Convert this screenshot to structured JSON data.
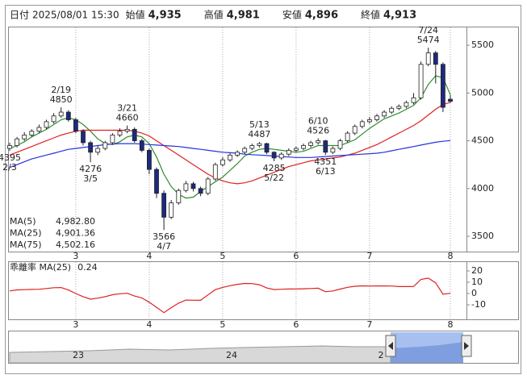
{
  "header": [
    {
      "label": "日付",
      "value": "2025/08/01 15:30",
      "color": "#222"
    },
    {
      "label": "始値",
      "value": "4,935",
      "color": "#222"
    },
    {
      "label": "高値",
      "value": "4,981",
      "color": "#e00000"
    },
    {
      "label": "安値",
      "value": "4,896",
      "color": "#1a8a1a"
    },
    {
      "label": "終値",
      "value": "4,913",
      "color": "#222"
    }
  ],
  "chart_data": [
    {
      "type": "candlestick",
      "categories": [
        null,
        null,
        null,
        null,
        null,
        null,
        null,
        null,
        null,
        "3",
        null,
        null,
        null,
        null,
        null,
        null,
        null,
        null,
        null,
        "4",
        null,
        null,
        null,
        null,
        null,
        null,
        null,
        null,
        null,
        "5",
        null,
        null,
        null,
        null,
        null,
        null,
        null,
        null,
        null,
        "6",
        null,
        null,
        null,
        null,
        null,
        null,
        null,
        null,
        null,
        "7",
        null,
        null,
        null,
        null,
        null,
        null,
        null,
        null,
        null,
        null,
        "8"
      ],
      "open": [
        4420,
        4450,
        4520,
        4560,
        4600,
        4640,
        4700,
        4760,
        4800,
        4720,
        4600,
        4480,
        4380,
        4420,
        4480,
        4560,
        4600,
        4620,
        4500,
        4400,
        4200,
        3950,
        3700,
        3850,
        3980,
        4050,
        4000,
        3950,
        4100,
        4250,
        4300,
        4350,
        4380,
        4420,
        4450,
        4470,
        4380,
        4320,
        4360,
        4400,
        4420,
        4450,
        4480,
        4500,
        4380,
        4420,
        4500,
        4580,
        4650,
        4700,
        4720,
        4760,
        4800,
        4840,
        4860,
        4900,
        4950,
        5300,
        5420,
        5300,
        4935
      ],
      "high": [
        4480,
        4540,
        4590,
        4620,
        4670,
        4720,
        4790,
        4850,
        4820,
        4740,
        4620,
        4500,
        4450,
        4500,
        4580,
        4630,
        4660,
        4640,
        4520,
        4420,
        4220,
        3980,
        3880,
        4000,
        4080,
        4070,
        4020,
        4120,
        4270,
        4330,
        4370,
        4400,
        4440,
        4470,
        4487,
        4480,
        4390,
        4380,
        4420,
        4440,
        4470,
        4500,
        4526,
        4510,
        4440,
        4520,
        4600,
        4670,
        4720,
        4750,
        4780,
        4820,
        4860,
        4880,
        4920,
        5000,
        5330,
        5474,
        5440,
        5320,
        4981
      ],
      "low": [
        4395,
        4430,
        4500,
        4540,
        4580,
        4620,
        4680,
        4740,
        4700,
        4580,
        4450,
        4276,
        4350,
        4400,
        4460,
        4540,
        4580,
        4480,
        4380,
        4150,
        3900,
        3566,
        3680,
        3830,
        3960,
        3970,
        3920,
        3930,
        4080,
        4230,
        4280,
        4330,
        4360,
        4400,
        4430,
        4360,
        4285,
        4300,
        4340,
        4380,
        4400,
        4430,
        4460,
        4351,
        4360,
        4400,
        4480,
        4560,
        4630,
        4680,
        4700,
        4740,
        4780,
        4820,
        4840,
        4880,
        4930,
        5280,
        5100,
        4800,
        4896
      ],
      "close": [
        4450,
        4520,
        4560,
        4600,
        4640,
        4700,
        4760,
        4800,
        4720,
        4600,
        4480,
        4380,
        4420,
        4480,
        4560,
        4600,
        4620,
        4500,
        4400,
        4200,
        3950,
        3700,
        3850,
        3980,
        4050,
        4000,
        3950,
        4100,
        4250,
        4300,
        4350,
        4380,
        4420,
        4450,
        4470,
        4380,
        4320,
        4360,
        4400,
        4420,
        4450,
        4480,
        4500,
        4380,
        4420,
        4500,
        4580,
        4650,
        4700,
        4720,
        4760,
        4800,
        4840,
        4860,
        4900,
        4950,
        5300,
        5420,
        5300,
        4850,
        4913
      ],
      "up_color": "#ffffff",
      "down_color": "#1c2a80",
      "edge_color": "#222222",
      "series": [
        {
          "name": "MA(5)",
          "legend_label": "4,982.80",
          "color": "#2e8b2e",
          "values": [
            4420,
            4450,
            4490,
            4540,
            4580,
            4620,
            4670,
            4720,
            4740,
            4720,
            4670,
            4600,
            4520,
            4470,
            4460,
            4490,
            4540,
            4560,
            4540,
            4470,
            4330,
            4150,
            4020,
            3940,
            3900,
            3910,
            3970,
            4020,
            4070,
            4120,
            4190,
            4260,
            4340,
            4380,
            4410,
            4420,
            4410,
            4400,
            4390,
            4380,
            4390,
            4420,
            4450,
            4450,
            4450,
            4450,
            4480,
            4510,
            4570,
            4630,
            4680,
            4730,
            4760,
            4790,
            4830,
            4870,
            4950,
            5090,
            5180,
            5160,
            4983
          ]
        },
        {
          "name": "MA(25)",
          "legend_label": "4,901.36",
          "color": "#e02020",
          "values": [
            4350,
            4380,
            4410,
            4440,
            4470,
            4500,
            4530,
            4560,
            4580,
            4600,
            4610,
            4610,
            4610,
            4610,
            4610,
            4610,
            4610,
            4600,
            4580,
            4550,
            4500,
            4450,
            4400,
            4350,
            4300,
            4250,
            4200,
            4150,
            4110,
            4080,
            4060,
            4050,
            4060,
            4080,
            4110,
            4140,
            4170,
            4200,
            4230,
            4250,
            4270,
            4290,
            4300,
            4310,
            4320,
            4330,
            4350,
            4370,
            4400,
            4430,
            4460,
            4500,
            4540,
            4580,
            4620,
            4660,
            4710,
            4770,
            4830,
            4880,
            4901
          ]
        },
        {
          "name": "MA(75)",
          "legend_label": "4,502.16",
          "color": "#2233dd",
          "values": [
            4220,
            4250,
            4280,
            4310,
            4330,
            4350,
            4370,
            4390,
            4410,
            4420,
            4430,
            4440,
            4450,
            4460,
            4465,
            4470,
            4470,
            4470,
            4465,
            4460,
            4455,
            4450,
            4445,
            4440,
            4430,
            4420,
            4410,
            4400,
            4390,
            4380,
            4375,
            4370,
            4360,
            4355,
            4350,
            4345,
            4340,
            4335,
            4330,
            4325,
            4325,
            4325,
            4330,
            4335,
            4340,
            4345,
            4350,
            4355,
            4360,
            4365,
            4370,
            4380,
            4395,
            4410,
            4425,
            4440,
            4455,
            4470,
            4485,
            4495,
            4502
          ]
        }
      ],
      "annotations": [
        {
          "date": "2/3",
          "price": 4395
        },
        {
          "date": "2/19",
          "price": 4850
        },
        {
          "date": "3/5",
          "price": 4276
        },
        {
          "date": "3/21",
          "price": 4660
        },
        {
          "date": "4/7",
          "price": 3566
        },
        {
          "date": "5/13",
          "price": 4487
        },
        {
          "date": "5/22",
          "price": 4285
        },
        {
          "date": "6/10",
          "price": 4526
        },
        {
          "date": "6/13",
          "price": 4351
        },
        {
          "date": "7/24",
          "price": 5474
        }
      ],
      "ylim": [
        3340,
        5695
      ],
      "yticks": [
        3500,
        4000,
        4500,
        5000,
        5500
      ],
      "grid": true
    },
    {
      "type": "line",
      "series": [
        {
          "name": "乖離率 MA(25)",
          "legend_label": "0.24",
          "color": "#e02020",
          "values": [
            2.3,
            3.2,
            3.4,
            3.6,
            3.8,
            4.4,
            5.1,
            5.3,
            3.1,
            0.0,
            -2.8,
            -5.0,
            -4.1,
            -2.8,
            -1.1,
            -0.2,
            0.2,
            -2.2,
            -3.9,
            -7.7,
            -12.2,
            -16.9,
            -12.5,
            -8.5,
            -5.8,
            -5.9,
            -6.0,
            -1.2,
            3.4,
            5.4,
            6.9,
            8.1,
            8.9,
            8.8,
            7.8,
            4.9,
            3.5,
            3.8,
            4.0,
            4.0,
            4.2,
            4.4,
            4.7,
            1.6,
            2.3,
            3.9,
            5.5,
            6.4,
            6.8,
            6.6,
            6.7,
            6.7,
            6.6,
            6.1,
            6.1,
            6.2,
            12.5,
            13.6,
            9.5,
            -0.6,
            0.24
          ]
        }
      ],
      "ylim": [
        -21.4,
        27.1
      ],
      "yticks": [
        -10,
        0,
        10,
        20
      ]
    }
  ],
  "navigator": {
    "labels": [
      "23",
      "24",
      "2"
    ]
  }
}
